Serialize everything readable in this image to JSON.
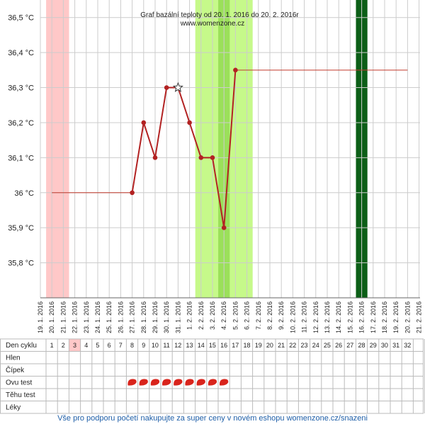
{
  "chart_data": {
    "type": "line",
    "title": "Graf bazální teploty od 20. 1. 2016 do 20. 2. 2016r",
    "subtitle": "www.womenzone.cz",
    "x": [
      "19. 1. 2016",
      "20. 1. 2016",
      "21. 1. 2016",
      "22. 1. 2016",
      "23. 1. 2016",
      "24. 1. 2016",
      "25. 1. 2016",
      "26. 1. 2016",
      "27. 1. 2016",
      "28. 1. 2016",
      "29. 1. 2016",
      "30. 1. 2016",
      "31. 1. 2016",
      "1. 2. 2016",
      "2. 2. 2016",
      "3. 2. 2016",
      "4. 2. 2016",
      "5. 2. 2016",
      "6. 2. 2016",
      "7. 2. 2016",
      "8. 2. 2016",
      "9. 2. 2016",
      "10. 2. 2016",
      "11. 2. 2016",
      "12. 2. 2016",
      "13. 2. 2016",
      "14. 2. 2016",
      "15. 2. 2016",
      "16. 2. 2016",
      "17. 2. 2016",
      "18. 2. 2016",
      "19. 2. 2016",
      "20. 2. 2016",
      "21. 2. 2016"
    ],
    "series": [
      {
        "color": "#c0392b",
        "width": 1,
        "markers": false,
        "values": [
          null,
          36.0,
          36.0,
          36.0,
          36.0,
          36.0,
          36.0,
          36.0,
          36.0,
          null,
          null,
          null,
          null,
          null,
          null,
          null,
          null,
          null,
          null,
          null,
          null,
          null,
          null,
          null,
          null,
          null,
          null,
          null,
          null,
          null,
          null,
          null,
          null,
          null
        ]
      },
      {
        "color": "#c0392b",
        "width": 1,
        "markers": false,
        "values": [
          null,
          null,
          null,
          null,
          null,
          null,
          null,
          null,
          null,
          null,
          null,
          null,
          null,
          null,
          null,
          null,
          null,
          36.35,
          36.35,
          36.35,
          36.35,
          36.35,
          36.35,
          36.35,
          36.35,
          36.35,
          36.35,
          36.35,
          36.35,
          36.35,
          36.35,
          36.35,
          36.35,
          null
        ]
      },
      {
        "color": "#b22222",
        "width": 2,
        "markers": true,
        "values": [
          null,
          null,
          null,
          null,
          null,
          null,
          null,
          null,
          36.0,
          36.2,
          36.1,
          36.3,
          36.3,
          36.2,
          36.1,
          36.1,
          35.9,
          36.35,
          null,
          null,
          null,
          null,
          null,
          null,
          null,
          null,
          null,
          null,
          null,
          null,
          null,
          null,
          null,
          null
        ]
      }
    ],
    "star_index": 12,
    "bands": [
      {
        "from": 1,
        "to": 2,
        "color": "#ffc8c8"
      },
      {
        "from": 14,
        "to": 18,
        "color": "#c6f98a"
      },
      {
        "from": 16,
        "to": 16,
        "color": "#9be05a"
      },
      {
        "from": 28,
        "to": 28,
        "color": "#0b5e16"
      }
    ],
    "ylim": [
      35.7,
      36.55
    ],
    "yticks": [
      {
        "value": 35.8,
        "label": "35,8 °C"
      },
      {
        "value": 35.9,
        "label": "35,9 °C"
      },
      {
        "value": 36.0,
        "label": "36 °C"
      },
      {
        "value": 36.1,
        "label": "36,1 °C"
      },
      {
        "value": 36.2,
        "label": "36,2 °C"
      },
      {
        "value": 36.3,
        "label": "36,3 °C"
      },
      {
        "value": 36.4,
        "label": "36,4 °C"
      },
      {
        "value": 36.5,
        "label": "36,5 °C"
      }
    ],
    "grid": true
  },
  "table": {
    "row_labels": [
      "Den cyklu",
      "Hlen",
      "Čípek",
      "Ovu test",
      "Těhu test",
      "Léky"
    ],
    "days": [
      1,
      2,
      3,
      4,
      5,
      6,
      7,
      8,
      9,
      10,
      11,
      12,
      13,
      14,
      15,
      16,
      17,
      18,
      19,
      20,
      21,
      22,
      23,
      24,
      25,
      26,
      27,
      28,
      29,
      30,
      31,
      32
    ],
    "highlight_day": 3,
    "ovu_test_days": [
      8,
      9,
      10,
      11,
      12,
      13,
      14,
      15,
      16
    ]
  },
  "footer": "Vše pro podporu početí nakupujte za super ceny v novém eshopu womenzone.cz/snazeni"
}
